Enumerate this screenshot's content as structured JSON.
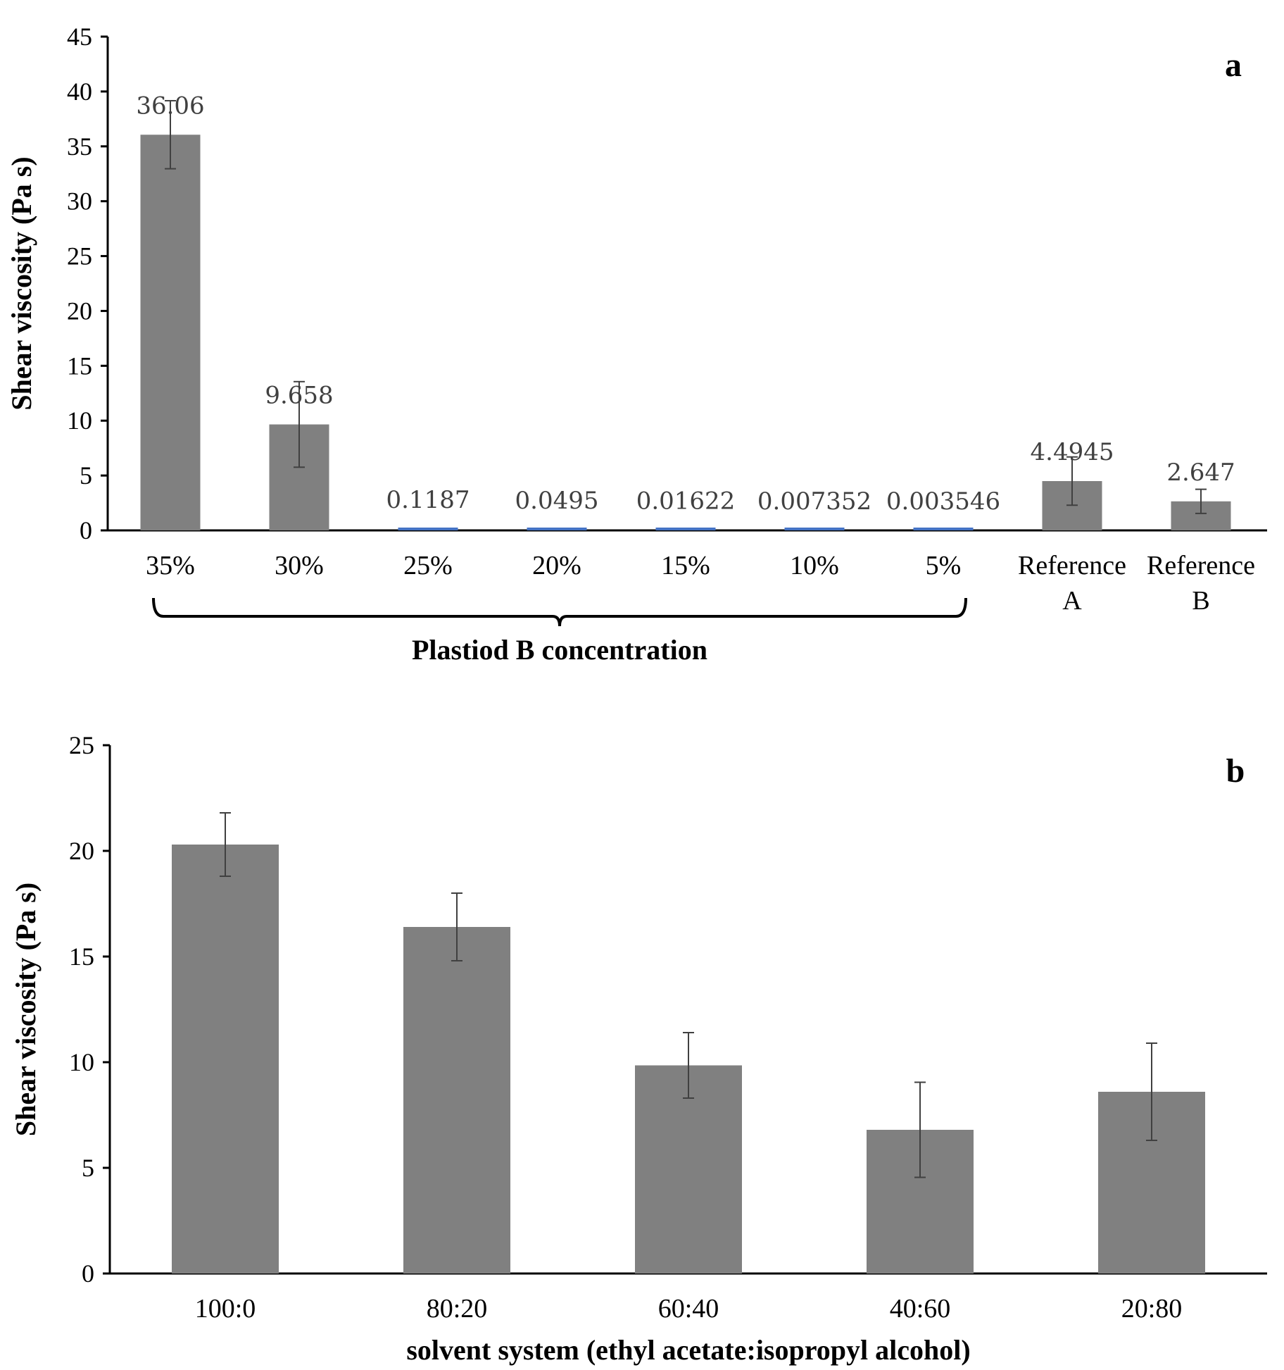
{
  "chart_data": [
    {
      "type": "bar",
      "panel_label": "a",
      "ylabel": "Shear viscosity (Pa s)",
      "xlabel": "",
      "ylim": [
        0,
        45
      ],
      "yticks": [
        0,
        5,
        10,
        15,
        20,
        25,
        30,
        35,
        40,
        45
      ],
      "categories": [
        "35%",
        "30%",
        "25%",
        "20%",
        "15%",
        "10%",
        "5%",
        "Reference A",
        "Reference B"
      ],
      "category_lines": [
        [
          "35%"
        ],
        [
          "30%"
        ],
        [
          "25%"
        ],
        [
          "20%"
        ],
        [
          "15%"
        ],
        [
          "10%"
        ],
        [
          "5%"
        ],
        [
          "Reference",
          "A"
        ],
        [
          "Reference",
          "B"
        ]
      ],
      "values": [
        36.06,
        9.658,
        0.1187,
        0.0495,
        0.01622,
        0.007352,
        0.003546,
        4.4945,
        2.647
      ],
      "data_labels": [
        "36.06",
        "9.658",
        "0.1187",
        "0.0495",
        "0.01622",
        "0.007352",
        "0.003546",
        "4.4945",
        "2.647"
      ],
      "errors": [
        3.1,
        3.9,
        0,
        0,
        0,
        0,
        0,
        2.2,
        1.1
      ],
      "bar_color": "#808080",
      "small_bar_color": "#4472C4",
      "group_bracket": {
        "label": "Plastiod B concentration",
        "from": "35%",
        "to": "5%"
      },
      "grid": false
    },
    {
      "type": "bar",
      "panel_label": "b",
      "ylabel": "Shear viscosity (Pa s)",
      "xlabel": "solvent system (ethyl acetate:isopropyl alcohol)",
      "ylim": [
        0,
        25
      ],
      "yticks": [
        0,
        5,
        10,
        15,
        20,
        25
      ],
      "categories": [
        "100:0",
        "80:20",
        "60:40",
        "40:60",
        "20:80"
      ],
      "values": [
        20.3,
        16.4,
        9.85,
        6.8,
        8.6
      ],
      "errors": [
        1.5,
        1.6,
        1.55,
        2.25,
        2.3
      ],
      "bar_color": "#808080",
      "grid": false
    }
  ]
}
